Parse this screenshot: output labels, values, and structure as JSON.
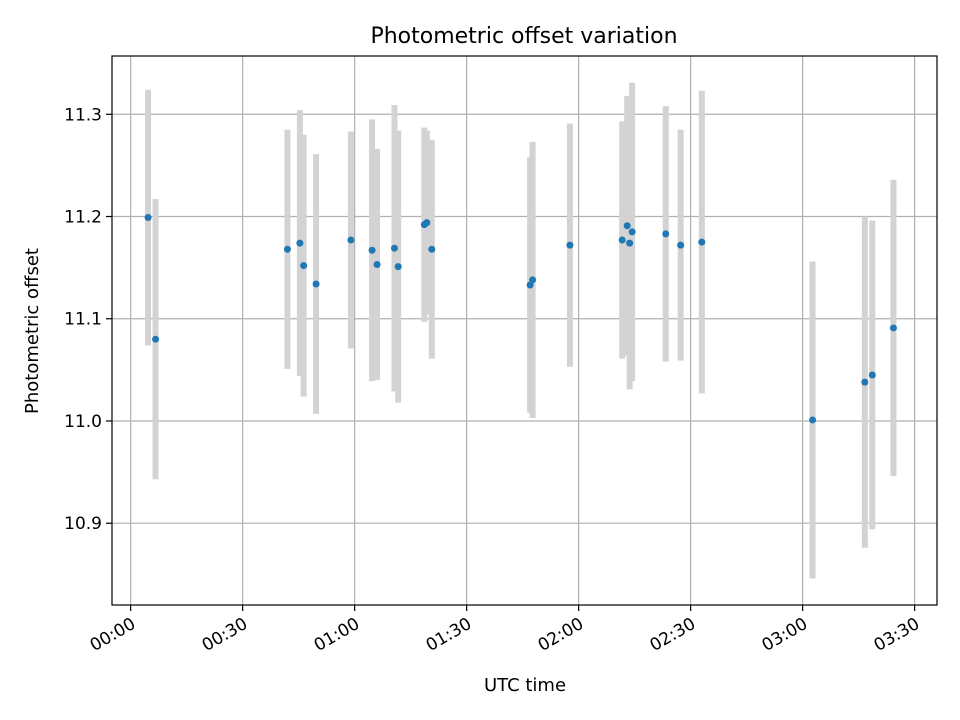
{
  "chart_data": {
    "type": "scatter",
    "title": "Photometric offset variation",
    "xlabel": "UTC time",
    "ylabel": "Photometric offset",
    "x_ticks": [
      "00:00",
      "00:30",
      "01:00",
      "01:30",
      "02:00",
      "02:30",
      "03:00",
      "03:30"
    ],
    "x_tick_minutes": [
      0,
      30,
      60,
      90,
      120,
      150,
      180,
      210
    ],
    "y_ticks": [
      "10.9",
      "11.0",
      "11.1",
      "11.2",
      "11.3"
    ],
    "y_tick_values": [
      10.9,
      11.0,
      11.1,
      11.2,
      11.3
    ],
    "xlim_minutes": [
      -5,
      216
    ],
    "ylim": [
      10.82,
      11.357
    ],
    "grid": true,
    "point_color": "#1f77b4",
    "errorbar_color": "#d3d3d3",
    "points": [
      {
        "t": "00:04:40",
        "y": 11.199,
        "err": 0.125
      },
      {
        "t": "00:06:40",
        "y": 11.08,
        "err": 0.137
      },
      {
        "t": "00:42:00",
        "y": 11.168,
        "err": 0.117
      },
      {
        "t": "00:45:20",
        "y": 11.174,
        "err": 0.13
      },
      {
        "t": "00:46:20",
        "y": 11.152,
        "err": 0.128
      },
      {
        "t": "00:49:40",
        "y": 11.134,
        "err": 0.127
      },
      {
        "t": "00:59:00",
        "y": 11.177,
        "err": 0.106
      },
      {
        "t": "01:04:40",
        "y": 11.167,
        "err": 0.128
      },
      {
        "t": "01:06:00",
        "y": 11.153,
        "err": 0.113
      },
      {
        "t": "01:10:40",
        "y": 11.169,
        "err": 0.14
      },
      {
        "t": "01:11:40",
        "y": 11.151,
        "err": 0.133
      },
      {
        "t": "01:18:40",
        "y": 11.192,
        "err": 0.095
      },
      {
        "t": "01:19:20",
        "y": 11.194,
        "err": 0.09
      },
      {
        "t": "01:20:40",
        "y": 11.168,
        "err": 0.107
      },
      {
        "t": "01:47:00",
        "y": 11.133,
        "err": 0.125
      },
      {
        "t": "01:47:40",
        "y": 11.138,
        "err": 0.135
      },
      {
        "t": "01:57:40",
        "y": 11.172,
        "err": 0.119
      },
      {
        "t": "02:11:40",
        "y": 11.177,
        "err": 0.116
      },
      {
        "t": "02:13:00",
        "y": 11.191,
        "err": 0.127
      },
      {
        "t": "02:13:40",
        "y": 11.174,
        "err": 0.143
      },
      {
        "t": "02:14:20",
        "y": 11.185,
        "err": 0.146
      },
      {
        "t": "02:23:20",
        "y": 11.183,
        "err": 0.125
      },
      {
        "t": "02:27:20",
        "y": 11.172,
        "err": 0.113
      },
      {
        "t": "02:33:00",
        "y": 11.175,
        "err": 0.148
      },
      {
        "t": "03:02:40",
        "y": 11.001,
        "err": 0.155
      },
      {
        "t": "03:16:40",
        "y": 11.038,
        "err": 0.162
      },
      {
        "t": "03:18:40",
        "y": 11.045,
        "err": 0.151
      },
      {
        "t": "03:24:20",
        "y": 11.091,
        "err": 0.145
      }
    ]
  }
}
